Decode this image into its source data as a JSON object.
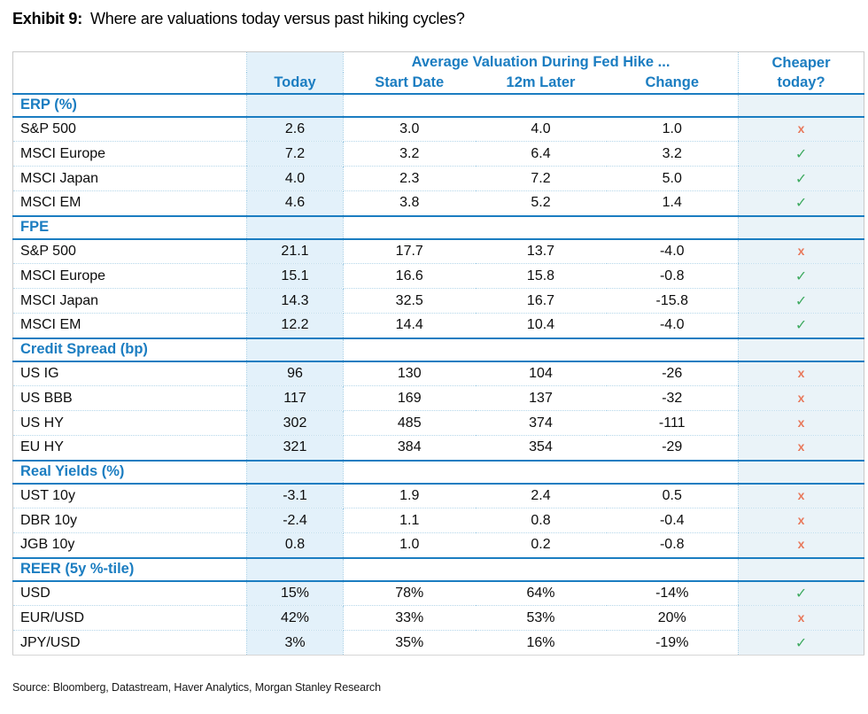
{
  "title": {
    "prefix": "Exhibit 9:",
    "text": "Where are valuations today versus past hiking cycles?"
  },
  "chart_data": {
    "type": "table",
    "title": "Exhibit 9: Where are valuations today versus past hiking cycles?",
    "group_header": "Average Valuation During Fed Hike ...",
    "sub_columns": [
      "Today",
      "Start Date",
      "12m Later",
      "Change"
    ],
    "cheaper_line1": "Cheaper",
    "cheaper_line2": "today?",
    "sections": [
      {
        "label": "ERP (%)",
        "rows": [
          {
            "name": "S&P 500",
            "today": "2.6",
            "start_date": "3.0",
            "later_12m": "4.0",
            "change": "1.0",
            "cheaper_today": "no"
          },
          {
            "name": "MSCI Europe",
            "today": "7.2",
            "start_date": "3.2",
            "later_12m": "6.4",
            "change": "3.2",
            "cheaper_today": "yes"
          },
          {
            "name": "MSCI Japan",
            "today": "4.0",
            "start_date": "2.3",
            "later_12m": "7.2",
            "change": "5.0",
            "cheaper_today": "yes"
          },
          {
            "name": "MSCI EM",
            "today": "4.6",
            "start_date": "3.8",
            "later_12m": "5.2",
            "change": "1.4",
            "cheaper_today": "yes"
          }
        ]
      },
      {
        "label": "FPE",
        "rows": [
          {
            "name": "S&P 500",
            "today": "21.1",
            "start_date": "17.7",
            "later_12m": "13.7",
            "change": "-4.0",
            "cheaper_today": "no"
          },
          {
            "name": "MSCI Europe",
            "today": "15.1",
            "start_date": "16.6",
            "later_12m": "15.8",
            "change": "-0.8",
            "cheaper_today": "yes"
          },
          {
            "name": "MSCI Japan",
            "today": "14.3",
            "start_date": "32.5",
            "later_12m": "16.7",
            "change": "-15.8",
            "cheaper_today": "yes"
          },
          {
            "name": "MSCI EM",
            "today": "12.2",
            "start_date": "14.4",
            "later_12m": "10.4",
            "change": "-4.0",
            "cheaper_today": "yes"
          }
        ]
      },
      {
        "label": "Credit Spread (bp)",
        "rows": [
          {
            "name": "US IG",
            "today": "96",
            "start_date": "130",
            "later_12m": "104",
            "change": "-26",
            "cheaper_today": "no"
          },
          {
            "name": "US BBB",
            "today": "117",
            "start_date": "169",
            "later_12m": "137",
            "change": "-32",
            "cheaper_today": "no"
          },
          {
            "name": "US HY",
            "today": "302",
            "start_date": "485",
            "later_12m": "374",
            "change": "-111",
            "cheaper_today": "no"
          },
          {
            "name": "EU HY",
            "today": "321",
            "start_date": "384",
            "later_12m": "354",
            "change": "-29",
            "cheaper_today": "no"
          }
        ]
      },
      {
        "label": "Real Yields (%)",
        "rows": [
          {
            "name": "UST 10y",
            "today": "-3.1",
            "start_date": "1.9",
            "later_12m": "2.4",
            "change": "0.5",
            "cheaper_today": "no"
          },
          {
            "name": "DBR 10y",
            "today": "-2.4",
            "start_date": "1.1",
            "later_12m": "0.8",
            "change": "-0.4",
            "cheaper_today": "no"
          },
          {
            "name": "JGB 10y",
            "today": "0.8",
            "start_date": "1.0",
            "later_12m": "0.2",
            "change": "-0.8",
            "cheaper_today": "no"
          }
        ]
      },
      {
        "label": "REER (5y %-tile)",
        "rows": [
          {
            "name": "USD",
            "today": "15%",
            "start_date": "78%",
            "later_12m": "64%",
            "change": "-14%",
            "cheaper_today": "yes"
          },
          {
            "name": "EUR/USD",
            "today": "42%",
            "start_date": "33%",
            "later_12m": "53%",
            "change": "20%",
            "cheaper_today": "no"
          },
          {
            "name": "JPY/USD",
            "today": "3%",
            "start_date": "35%",
            "later_12m": "16%",
            "change": "-19%",
            "cheaper_today": "yes"
          }
        ]
      }
    ]
  },
  "icons": {
    "check": "✓",
    "cross": "x"
  },
  "source": "Source: Bloomberg, Datastream, Haver Analytics, Morgan Stanley Research",
  "colors": {
    "header_blue": "#1b7dc1",
    "today_column_bg": "#e3f1fa",
    "cheaper_column_bg": "#eaf3f8",
    "check_green": "#3faa60",
    "cross_red": "#e8795c"
  }
}
